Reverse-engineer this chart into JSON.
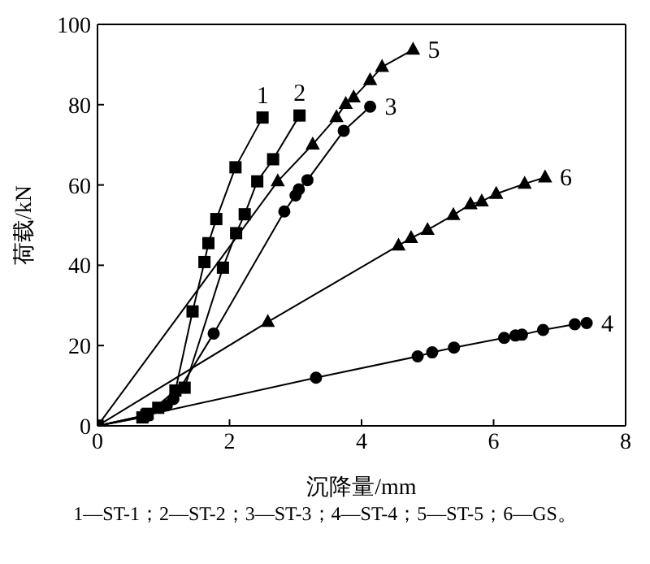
{
  "chart_data": {
    "type": "line",
    "xlabel": "沉降量/mm",
    "ylabel": "荷载/kN",
    "xlim": [
      0,
      8
    ],
    "xticks": [
      0,
      2,
      4,
      6,
      8
    ],
    "ylim": [
      0,
      100
    ],
    "yticks": [
      0,
      20,
      40,
      60,
      80,
      100
    ],
    "line_style": "solid",
    "series": [
      {
        "name": "1",
        "color": "#000000",
        "marker": "square",
        "x": [
          0,
          0.68,
          0.76,
          1.18,
          1.44,
          1.62,
          1.68,
          1.8,
          2.09,
          2.5
        ],
        "values": [
          0,
          2.1,
          3,
          8.8,
          28.5,
          40.8,
          45.5,
          51.5,
          64.4,
          76.8
        ]
      },
      {
        "name": "2",
        "color": "#000000",
        "marker": "square",
        "x": [
          0,
          0.74,
          0.92,
          1.32,
          1.9,
          2.1,
          2.23,
          2.42,
          2.66,
          3.06
        ],
        "values": [
          0,
          2.7,
          4.5,
          9.5,
          39.4,
          48,
          52.7,
          60.9,
          66.4,
          77.3
        ]
      },
      {
        "name": "3",
        "color": "#000000",
        "marker": "circle",
        "x": [
          0,
          0.74,
          1.05,
          1.15,
          1.76,
          2.83,
          3,
          3.05,
          3.18,
          3.73,
          4.13
        ],
        "values": [
          0,
          2.4,
          5.1,
          6.7,
          23,
          53.4,
          57.4,
          58.9,
          61.2,
          73.5,
          79.5
        ]
      },
      {
        "name": "4",
        "color": "#000000",
        "marker": "circle",
        "x": [
          0,
          3.31,
          4.85,
          5.07,
          5.4,
          6.16,
          6.33,
          6.43,
          6.75,
          7.23,
          7.41
        ],
        "values": [
          0,
          12,
          17.3,
          18.3,
          19.5,
          21.9,
          22.5,
          22.7,
          23.9,
          25.3,
          25.6
        ]
      },
      {
        "name": "5",
        "color": "#000000",
        "marker": "triangle",
        "x": [
          0,
          2.73,
          3.26,
          3.62,
          3.76,
          3.88,
          4.13,
          4.31,
          4.78
        ],
        "values": [
          0,
          60.9,
          70.1,
          76.9,
          80.2,
          81.8,
          86.1,
          89.4,
          93.7
        ]
      },
      {
        "name": "6",
        "color": "#000000",
        "marker": "triangle",
        "x": [
          0,
          2.58,
          4.56,
          4.75,
          5,
          5.39,
          5.65,
          5.82,
          6.04,
          6.47,
          6.78
        ],
        "values": [
          0,
          25.9,
          44.9,
          46.8,
          48.8,
          52.5,
          55.2,
          55.9,
          57.8,
          60.3,
          61.9
        ]
      }
    ],
    "annotations": [
      "1—ST-1；2—ST-2；3—ST-3；4—ST-4；5—ST-5；6—GS。"
    ]
  }
}
